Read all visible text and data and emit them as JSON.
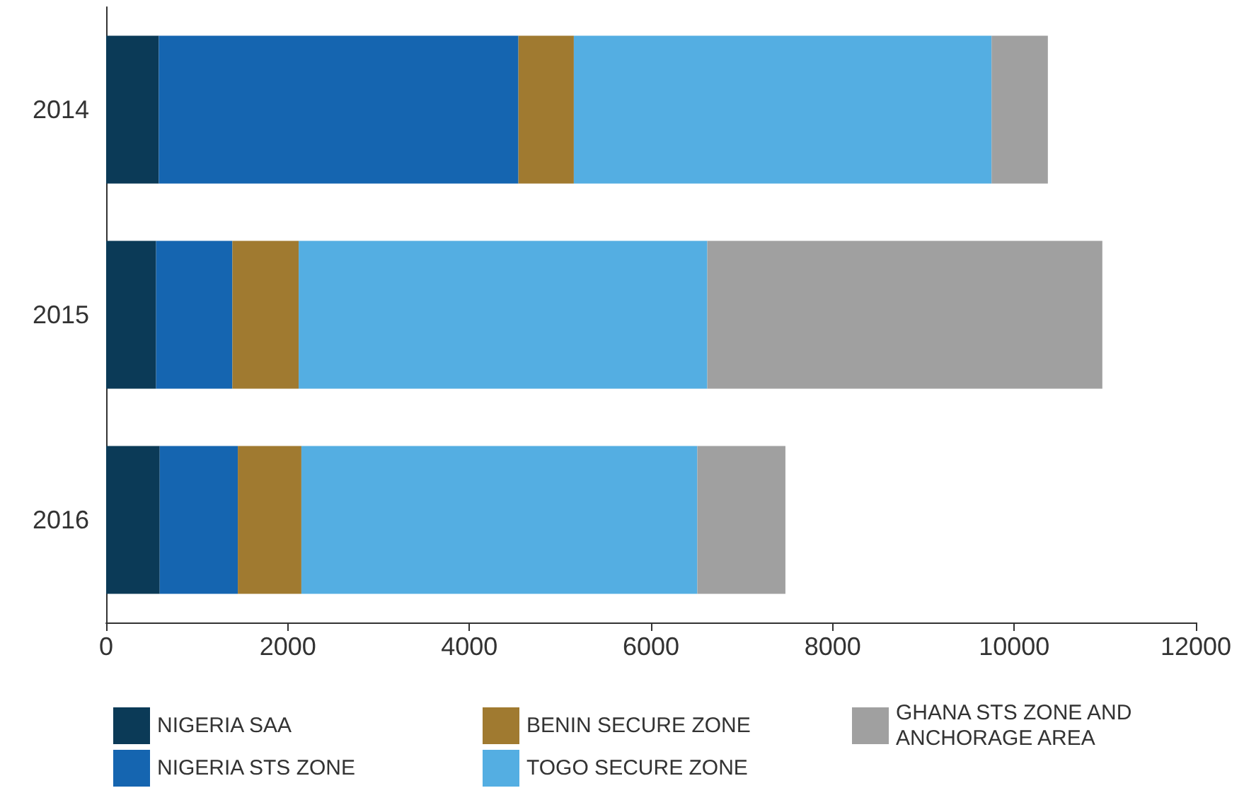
{
  "chart_data": {
    "type": "bar",
    "orientation": "horizontal",
    "stacked": true,
    "categories": [
      "2014",
      "2015",
      "2016"
    ],
    "series": [
      {
        "name": "NIGERIA SAA",
        "color": "#0b3a57",
        "values": [
          580,
          550,
          590
        ]
      },
      {
        "name": "NIGERIA STS ZONE",
        "color": "#1565b0",
        "values": [
          3960,
          840,
          860
        ]
      },
      {
        "name": "BENIN SECURE ZONE",
        "color": "#a07a30",
        "values": [
          610,
          730,
          700
        ]
      },
      {
        "name": "TOGO SECURE ZONE",
        "color": "#54aee2",
        "values": [
          4600,
          4500,
          4360
        ]
      },
      {
        "name": "GHANA STS ZONE AND ANCHORAGE AREA",
        "color": "#a0a0a0",
        "values": [
          620,
          4350,
          970
        ]
      }
    ],
    "xlim": [
      0,
      12000
    ],
    "xticks": [
      0,
      2000,
      4000,
      6000,
      8000,
      10000,
      12000
    ],
    "grid": false,
    "legend": "bottom"
  }
}
